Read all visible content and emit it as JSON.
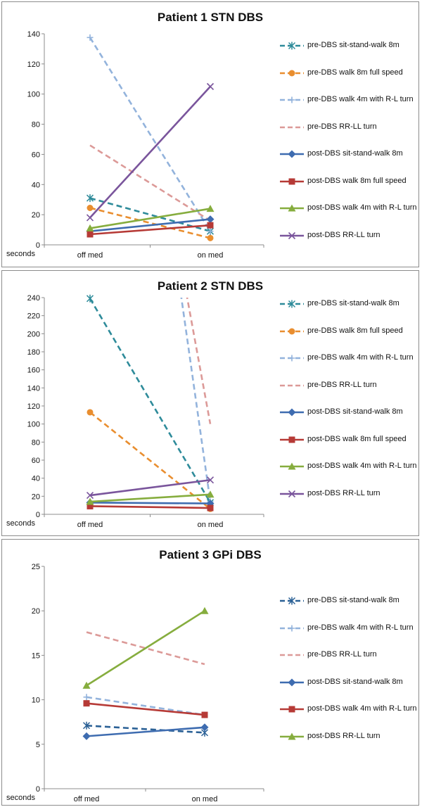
{
  "chart_data": [
    {
      "type": "line",
      "title": "Patient 1 STN DBS",
      "ylabel": "seconds",
      "categories": [
        "off med",
        "on med"
      ],
      "ylim": [
        0,
        140
      ],
      "ytick_step": 20,
      "series": [
        {
          "name": "pre-DBS sit-stand-walk  8m",
          "values": [
            31,
            9
          ],
          "color": "#2e8b9a",
          "dash": true,
          "marker": "asterisk"
        },
        {
          "name": "pre-DBS walk 8m full speed",
          "values": [
            24.5,
            4.5
          ],
          "color": "#e98e2f",
          "dash": true,
          "marker": "circle"
        },
        {
          "name": "pre-DBS walk 4m with  R-L turn",
          "values": [
            137.5,
            9
          ],
          "color": "#93b3dc",
          "dash": true,
          "marker": "plus"
        },
        {
          "name": "pre-DBS RR-LL turn",
          "values": [
            66,
            16
          ],
          "color": "#dc9a98",
          "dash": true,
          "marker": "none"
        },
        {
          "name": "post-DBS sit-stand-walk  8m",
          "values": [
            9,
            17
          ],
          "color": "#3e6cb0",
          "dash": false,
          "marker": "diamond"
        },
        {
          "name": "post-DBS walk 8m full speed",
          "values": [
            7,
            13
          ],
          "color": "#b63a36",
          "dash": false,
          "marker": "square"
        },
        {
          "name": "post-DBS walk 4m with  R-L turn",
          "values": [
            11,
            24
          ],
          "color": "#86ad3e",
          "dash": false,
          "marker": "triangle"
        },
        {
          "name": "post-DBS RR-LL turn",
          "values": [
            18,
            105
          ],
          "color": "#7a559c",
          "dash": false,
          "marker": "x"
        }
      ]
    },
    {
      "type": "line",
      "title": "Patient 2 STN DBS",
      "ylabel": "seconds",
      "categories": [
        "off med",
        "on med"
      ],
      "ylim": [
        0,
        240
      ],
      "ytick_step": 20,
      "series": [
        {
          "name": "pre-DBS sit-stand-walk  8m",
          "values": [
            239,
            13
          ],
          "color": "#2e8b9a",
          "dash": true,
          "marker": "asterisk"
        },
        {
          "name": "pre-DBS walk 8m full speed",
          "values": [
            113,
            6
          ],
          "color": "#e98e2f",
          "dash": true,
          "marker": "circle"
        },
        {
          "name": "pre-DBS walk 4m with  R-L turn",
          "values": [
            null,
            14
          ],
          "color": "#93b3dc",
          "dash": true,
          "marker": "plus"
        },
        {
          "name": "pre-DBS RR-LL turn",
          "values": [
            null,
            100
          ],
          "color": "#dc9a98",
          "dash": true,
          "marker": "none"
        },
        {
          "name": "post-DBS sit-stand-walk  8m",
          "values": [
            13,
            12
          ],
          "color": "#3e6cb0",
          "dash": false,
          "marker": "diamond"
        },
        {
          "name": "post-DBS walk 8m full speed",
          "values": [
            9,
            7
          ],
          "color": "#b63a36",
          "dash": false,
          "marker": "square"
        },
        {
          "name": "post-DBS walk 4m with  R-L turn",
          "values": [
            14,
            22
          ],
          "color": "#86ad3e",
          "dash": false,
          "marker": "triangle"
        },
        {
          "name": "post-DBS RR-LL turn",
          "values": [
            21,
            38
          ],
          "color": "#7a559c",
          "dash": false,
          "marker": "x"
        }
      ]
    },
    {
      "type": "line",
      "title": "Patient 3 GPi DBS",
      "ylabel": "seconds",
      "categories": [
        "off med",
        "on med"
      ],
      "ylim": [
        0,
        25
      ],
      "ytick_step": 5,
      "series": [
        {
          "name": "pre-DBS sit-stand-walk  8m",
          "values": [
            7.1,
            6.3
          ],
          "color": "#2b6196",
          "dash": true,
          "marker": "asterisk"
        },
        {
          "name": "pre-DBS walk 4m with  R-L turn",
          "values": [
            10.3,
            8.3
          ],
          "color": "#93b3dc",
          "dash": true,
          "marker": "plus"
        },
        {
          "name": "pre-DBS RR-LL turn",
          "values": [
            17.6,
            14
          ],
          "color": "#dc9a98",
          "dash": true,
          "marker": "none"
        },
        {
          "name": "post-DBS sit-stand-walk  8m",
          "values": [
            5.9,
            6.9
          ],
          "color": "#3e6cb0",
          "dash": false,
          "marker": "diamond"
        },
        {
          "name": "post-DBS walk 4m with  R-L turn",
          "values": [
            9.6,
            8.3
          ],
          "color": "#b63a36",
          "dash": false,
          "marker": "square"
        },
        {
          "name": "post-DBS RR-LL turn",
          "values": [
            11.6,
            20
          ],
          "color": "#86ad3e",
          "dash": false,
          "marker": "triangle"
        }
      ]
    }
  ]
}
